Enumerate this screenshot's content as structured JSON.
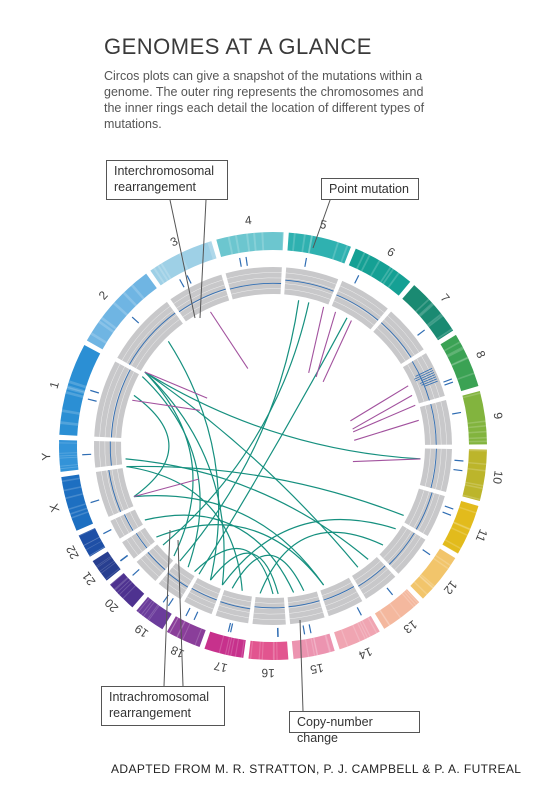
{
  "title": "GENOMES AT A GLANCE",
  "intro": "Circos plots can give a snapshot of the mutations within a genome. The outer ring represents the chromosomes and the inner rings each detail the location of different types of mutations.",
  "callouts": {
    "interchromosomal": [
      "Interchromosomal",
      "rearrangement"
    ],
    "point_mutation": "Point mutation",
    "intrachromosomal": [
      "Intrachromosomal",
      "rearrangement"
    ],
    "copy_number": "Copy-number change"
  },
  "credit": "ADAPTED FROM M. R. STRATTON, P. J. CAMPBELL & P. A. FUTREAL",
  "colors": {
    "inter_line": "#16907f",
    "intra_line": "#a2529e",
    "copy_track": "#c8c8ca",
    "callout_border": "#555555"
  },
  "chromosomes": [
    {
      "label": "1",
      "color": "#2b8fd4"
    },
    {
      "label": "2",
      "color": "#6fb5e3"
    },
    {
      "label": "3",
      "color": "#9ed0e6"
    },
    {
      "label": "4",
      "color": "#6cc6cf"
    },
    {
      "label": "5",
      "color": "#2fb1b0"
    },
    {
      "label": "6",
      "color": "#15a094"
    },
    {
      "label": "7",
      "color": "#1a8a72"
    },
    {
      "label": "8",
      "color": "#3ba254"
    },
    {
      "label": "9",
      "color": "#82b43e"
    },
    {
      "label": "10",
      "color": "#bcb52b"
    },
    {
      "label": "11",
      "color": "#e2bb1c"
    },
    {
      "label": "12",
      "color": "#f2c56b"
    },
    {
      "label": "13",
      "color": "#f4b89e"
    },
    {
      "label": "14",
      "color": "#f0a5b2"
    },
    {
      "label": "15",
      "color": "#ec94b0"
    },
    {
      "label": "16",
      "color": "#e2558f"
    },
    {
      "label": "17",
      "color": "#c7318c"
    },
    {
      "label": "18",
      "color": "#8a3e9a"
    },
    {
      "label": "19",
      "color": "#6b3c9b"
    },
    {
      "label": "20",
      "color": "#4e3290"
    },
    {
      "label": "21",
      "color": "#283f90"
    },
    {
      "label": "22",
      "color": "#1e4fa6"
    },
    {
      "label": "X",
      "color": "#1d6fc1"
    },
    {
      "label": "Y",
      "color": "#3393d8"
    }
  ]
}
